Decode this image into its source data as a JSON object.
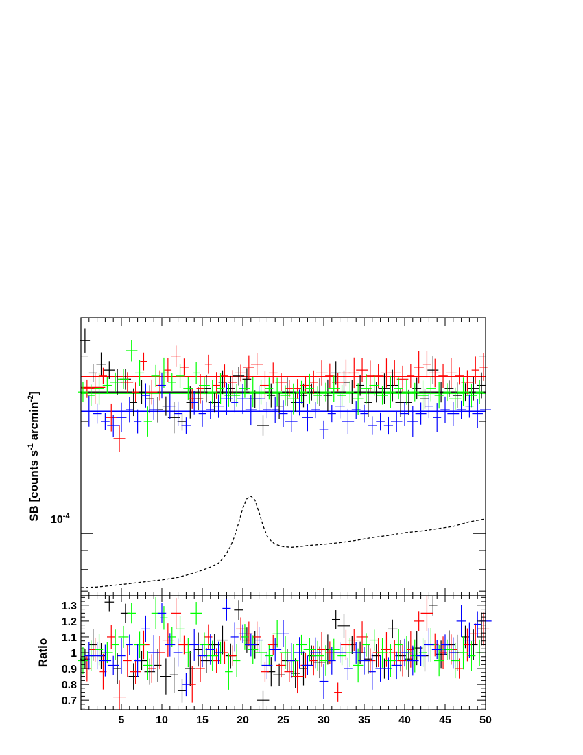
{
  "chart_data": [
    {
      "type": "scatter",
      "panel": "top",
      "ylabel": "SB [counts s",
      "ylabel_sup1": "-1",
      "ylabel_mid": " arcmin",
      "ylabel_sup2": "-2",
      "ylabel_end": "]",
      "yscale": "log",
      "ylim": [
        6.8e-05,
        0.00038
      ],
      "xlim": [
        0,
        50
      ],
      "ytick_labels": [
        {
          "base": "10",
          "exp": "-4",
          "value": 0.0001
        }
      ],
      "grid": false,
      "legend": "none",
      "fit_lines": [
        {
          "color": "#ff0000",
          "value": 0.000264
        },
        {
          "color": "#000000",
          "value": 0.00024
        },
        {
          "color": "#00ff00",
          "value": 0.000238
        },
        {
          "color": "#0000ff",
          "value": 0.000213
        }
      ],
      "red_low_segment": {
        "x": [
          0,
          3
        ],
        "value": 0.000247
      },
      "background_profile": {
        "style": "dashed",
        "x": [
          0,
          2,
          4,
          6,
          8,
          10,
          12,
          13,
          14,
          15,
          16,
          17,
          17.5,
          18,
          18.5,
          19,
          19.5,
          20,
          20.5,
          21,
          21.5,
          22,
          22.5,
          23,
          23.5,
          24,
          25,
          26,
          27,
          28,
          30,
          32,
          34,
          36,
          38,
          40,
          42,
          44,
          46,
          48,
          50
        ],
        "values": [
          7.15e-05,
          7.18e-05,
          7.25e-05,
          7.33e-05,
          7.42e-05,
          7.5e-05,
          7.62e-05,
          7.72e-05,
          7.83e-05,
          7.97e-05,
          8.12e-05,
          8.32e-05,
          8.55e-05,
          8.85e-05,
          9.25e-05,
          9.85e-05,
          0.000107,
          0.000117,
          0.000124,
          0.000126,
          0.000123,
          0.000114,
          0.000105,
          9.85e-05,
          9.55e-05,
          9.35e-05,
          9.22e-05,
          9.18e-05,
          9.22e-05,
          9.28e-05,
          9.35e-05,
          9.45e-05,
          9.58e-05,
          9.75e-05,
          9.88e-05,
          0.0001005,
          0.0001015,
          0.000103,
          0.0001045,
          0.0001075,
          0.0001095
        ]
      },
      "series": [
        {
          "color": "#000000",
          "x": [
            0.5,
            1.5,
            2.5,
            3.5,
            4.5,
            5.5,
            6.5,
            7.5,
            8.5,
            9.5,
            10.5,
            11.5,
            12.5,
            13.5,
            14.5,
            15.5,
            16.5,
            17.5,
            18.5,
            19.5,
            20.5,
            21.5,
            22.5,
            23.5,
            24.5,
            25.5,
            26.5,
            27.5,
            28.5,
            29.5,
            30.5,
            31.5,
            32.5,
            33.5,
            34.5,
            35.5,
            36.5,
            37.5,
            38.5,
            39.5,
            40.5,
            41.5,
            42.5,
            43.5,
            44.5,
            45.5,
            46.5,
            47.5,
            48.5,
            49.5
          ],
          "values": [
            0.00033,
            0.00027,
            0.000285,
            0.000275,
            0.000255,
            0.00026,
            0.000225,
            0.00024,
            0.00023,
            0.000215,
            0.00022,
            0.000205,
            0.0002,
            0.000225,
            0.00023,
            0.000245,
            0.000225,
            0.000255,
            0.000245,
            0.000265,
            0.00026,
            0.00023,
            0.000195,
            0.000235,
            0.00022,
            0.00024,
            0.000225,
            0.000235,
            0.00024,
            0.00024,
            0.000235,
            0.00027,
            0.000255,
            0.00024,
            0.00025,
            0.000225,
            0.00024,
            0.000245,
            0.00025,
            0.000225,
            0.000225,
            0.000245,
            0.00023,
            0.000275,
            0.00024,
            0.000245,
            0.000235,
            0.00024,
            0.000245,
            0.00025
          ]
        },
        {
          "color": "#ff0000",
          "x": [
            0.75,
            1.75,
            2.75,
            3.75,
            4.75,
            5.75,
            6.75,
            7.75,
            8.75,
            9.75,
            10.75,
            11.75,
            12.75,
            13.75,
            14.75,
            15.75,
            16.75,
            17.75,
            18.75,
            19.75,
            20.75,
            21.75,
            22.75,
            23.75,
            24.75,
            25.75,
            26.75,
            27.75,
            28.75,
            29.75,
            30.75,
            31.75,
            32.75,
            33.75,
            34.75,
            35.75,
            36.75,
            37.75,
            38.75,
            39.75,
            40.75,
            41.75,
            42.75,
            43.75,
            44.75,
            45.75,
            46.75,
            47.75,
            48.75,
            49.75
          ],
          "values": [
            0.000245,
            0.000245,
            0.000265,
            0.000205,
            0.00018,
            0.000255,
            0.00024,
            0.00029,
            0.00024,
            0.00025,
            0.000275,
            0.0003,
            0.00028,
            0.00023,
            0.000245,
            0.000285,
            0.00025,
            0.000265,
            0.000255,
            0.00027,
            0.00028,
            0.000285,
            0.00025,
            0.00027,
            0.000255,
            0.000245,
            0.000245,
            0.00025,
            0.000255,
            0.00027,
            0.000265,
            0.000255,
            0.00027,
            0.00027,
            0.000275,
            0.000265,
            0.000265,
            0.00027,
            0.00027,
            0.00026,
            0.000265,
            0.00028,
            0.000285,
            0.00027,
            0.000265,
            0.00027,
            0.000265,
            0.000255,
            0.000275,
            0.00028
          ]
        },
        {
          "color": "#00ff00",
          "x": [
            0.25,
            1.25,
            2.25,
            3.25,
            4.25,
            5.25,
            6.25,
            7.25,
            8.25,
            9.25,
            10.25,
            11.25,
            12.25,
            13.25,
            14.25,
            15.25,
            16.25,
            17.25,
            18.25,
            19.25,
            20.25,
            21.25,
            22.25,
            23.25,
            24.25,
            25.25,
            26.25,
            27.25,
            28.25,
            29.25,
            30.25,
            31.25,
            32.25,
            33.25,
            34.25,
            35.25,
            36.25,
            37.25,
            38.25,
            39.25,
            40.25,
            41.25,
            42.25,
            43.25,
            44.25,
            45.25,
            46.25,
            47.25,
            48.25,
            49.25
          ],
          "values": [
            0.00024,
            0.000235,
            0.000245,
            0.00025,
            0.000255,
            0.00026,
            0.00031,
            0.00027,
            0.0002,
            0.000265,
            0.00027,
            0.000255,
            0.000265,
            0.000245,
            0.00027,
            0.00025,
            0.00024,
            0.000245,
            0.000235,
            0.000235,
            0.000245,
            0.00024,
            0.00024,
            0.000245,
            0.00024,
            0.000235,
            0.00023,
            0.00024,
            0.000245,
            0.000235,
            0.00024,
            0.000245,
            0.000235,
            0.00024,
            0.00023,
            0.000245,
            0.00025,
            0.000235,
            0.00024,
            0.000245,
            0.00024,
            0.00024,
            0.000235,
            0.000245,
            0.000235,
            0.00024,
            0.00023,
            0.00024,
            0.000235,
            0.00024
          ]
        },
        {
          "color": "#0000ff",
          "x": [
            1.0,
            2.0,
            3.0,
            4.0,
            5.0,
            6.0,
            7.0,
            8.0,
            9.0,
            10.0,
            11.0,
            12.0,
            13.0,
            14.0,
            15.0,
            16.0,
            17.0,
            18.0,
            19.0,
            20.0,
            21.0,
            22.0,
            23.0,
            24.0,
            25.0,
            26.0,
            27.0,
            28.0,
            29.0,
            30.0,
            31.0,
            32.0,
            33.0,
            34.0,
            35.0,
            36.0,
            37.0,
            38.0,
            39.0,
            40.0,
            41.0,
            42.0,
            43.0,
            44.0,
            45.0,
            46.0,
            47.0,
            48.0,
            49.0,
            50.0
          ],
          "values": [
            0.000213,
            0.00021,
            0.0002,
            0.000195,
            0.000205,
            0.000215,
            0.0002,
            0.000235,
            0.000215,
            0.00025,
            0.00022,
            0.00021,
            0.000195,
            0.000225,
            0.00021,
            0.000215,
            0.00022,
            0.00023,
            0.000225,
            0.00023,
            0.000215,
            0.00023,
            0.000215,
            0.000215,
            0.00021,
            0.0002,
            0.000225,
            0.000205,
            0.000215,
            0.00019,
            0.00021,
            0.00022,
            0.0002,
            0.000215,
            0.00021,
            0.000195,
            0.0002,
            0.000195,
            0.0002,
            0.00021,
            0.0002,
            0.00021,
            0.00022,
            0.000205,
            0.000215,
            0.00021,
            0.000215,
            0.00022,
            0.00021,
            0.000215
          ]
        }
      ]
    },
    {
      "type": "scatter",
      "panel": "bottom",
      "ylabel": "Ratio",
      "xlim": [
        0,
        50
      ],
      "ylim": [
        0.64,
        1.36
      ],
      "xtick_labels": [
        "5",
        "10",
        "15",
        "20",
        "25",
        "30",
        "35",
        "40",
        "45",
        "50"
      ],
      "xtick_values": [
        5,
        10,
        15,
        20,
        25,
        30,
        35,
        40,
        45,
        50
      ],
      "ytick_labels": [
        "0.7",
        "0.8",
        "0.9",
        "1",
        "1.1",
        "1.2",
        "1.3"
      ],
      "ytick_values": [
        0.7,
        0.8,
        0.9,
        1.0,
        1.1,
        1.2,
        1.3
      ],
      "grid": false,
      "legend": "none",
      "series": [
        {
          "color": "#000000",
          "x": [
            0.5,
            1.5,
            2.5,
            3.5,
            4.5,
            5.5,
            6.5,
            7.5,
            8.5,
            9.5,
            10.5,
            11.5,
            12.5,
            13.5,
            14.5,
            15.5,
            16.5,
            17.5,
            18.5,
            19.5,
            20.5,
            21.5,
            22.5,
            23.5,
            24.5,
            25.5,
            26.5,
            27.5,
            28.5,
            29.5,
            30.5,
            31.5,
            32.5,
            33.5,
            34.5,
            35.5,
            36.5,
            37.5,
            38.5,
            39.5,
            40.5,
            41.5,
            42.5,
            43.5,
            44.5,
            45.5,
            46.5,
            47.5,
            48.5,
            49.5
          ],
          "values": [
            0.96,
            1.05,
            0.98,
            1.32,
            0.9,
            1.25,
            0.85,
            0.95,
            0.88,
            0.92,
            0.85,
            0.86,
            0.76,
            0.9,
            1.02,
            0.95,
            1.05,
            1.08,
            0.98,
            1.27,
            1.08,
            1.05,
            0.7,
            0.88,
            0.86,
            0.95,
            0.87,
            0.9,
            0.98,
            0.94,
            1.02,
            1.21,
            1.17,
            1.05,
            1.0,
            0.96,
            0.98,
            0.9,
            1.15,
            0.98,
            0.96,
            1.03,
            0.98,
            1.3,
            0.99,
            1.05,
            1.0,
            1.1,
            1.05,
            1.15
          ]
        },
        {
          "color": "#ff0000",
          "x": [
            0.75,
            1.75,
            2.75,
            3.75,
            4.75,
            5.75,
            6.75,
            7.75,
            8.75,
            9.75,
            10.75,
            11.75,
            12.75,
            13.75,
            14.75,
            15.75,
            16.75,
            17.75,
            18.75,
            19.75,
            20.75,
            21.75,
            22.75,
            23.75,
            24.75,
            25.75,
            26.75,
            27.75,
            28.75,
            29.75,
            30.75,
            31.75,
            32.75,
            33.75,
            34.75,
            35.75,
            36.75,
            37.75,
            38.75,
            39.75,
            40.75,
            41.75,
            42.75,
            43.75,
            44.75,
            45.75,
            46.75,
            47.75,
            48.75,
            49.75
          ],
          "values": [
            0.9,
            1.02,
            0.88,
            1.1,
            0.72,
            0.95,
            0.88,
            1.05,
            0.9,
            1.0,
            1.08,
            1.25,
            1.05,
            0.8,
            0.9,
            1.1,
            0.95,
            1.0,
            0.98,
            1.15,
            1.12,
            1.1,
            0.88,
            1.05,
            0.92,
            0.88,
            0.85,
            0.92,
            0.95,
            1.02,
            1.0,
            0.75,
            1.05,
            1.08,
            1.1,
            0.95,
            1.0,
            1.02,
            1.0,
            0.95,
            1.02,
            1.2,
            1.25,
            1.05,
            1.0,
            1.02,
            0.9,
            1.05,
            1.12,
            1.15
          ]
        },
        {
          "color": "#00ff00",
          "x": [
            0.25,
            1.25,
            2.25,
            3.25,
            4.25,
            5.25,
            6.25,
            7.25,
            8.25,
            9.25,
            10.25,
            11.25,
            12.25,
            13.25,
            14.25,
            15.25,
            16.25,
            17.25,
            18.25,
            19.25,
            20.25,
            21.25,
            22.25,
            23.25,
            24.25,
            25.25,
            26.25,
            27.25,
            28.25,
            29.25,
            30.25,
            31.25,
            32.25,
            33.25,
            34.25,
            35.25,
            36.25,
            37.25,
            38.25,
            39.25,
            40.25,
            41.25,
            42.25,
            43.25,
            44.25,
            45.25,
            46.25,
            47.25,
            48.25,
            49.25
          ],
          "values": [
            0.95,
            0.98,
            1.02,
            1.0,
            1.05,
            1.1,
            1.25,
            1.05,
            0.92,
            1.25,
            1.22,
            1.1,
            1.15,
            1.0,
            1.25,
            1.05,
            0.98,
            1.0,
            0.88,
            0.95,
            1.1,
            1.02,
            1.0,
            0.98,
            1.12,
            1.0,
            0.95,
            1.05,
            1.02,
            0.98,
            0.95,
            1.02,
            0.98,
            1.0,
            0.92,
            1.05,
            1.08,
            1.0,
            0.95,
            1.05,
            1.0,
            0.98,
            1.0,
            1.05,
            0.95,
            1.02,
            0.95,
            1.0,
            0.98,
            1.0
          ]
        },
        {
          "color": "#0000ff",
          "x": [
            1.0,
            2.0,
            3.0,
            4.0,
            5.0,
            6.0,
            7.0,
            8.0,
            9.0,
            10.0,
            11.0,
            12.0,
            13.0,
            14.0,
            15.0,
            16.0,
            17.0,
            18.0,
            19.0,
            20.0,
            21.0,
            22.0,
            23.0,
            24.0,
            25.0,
            26.0,
            27.0,
            28.0,
            29.0,
            30.0,
            31.0,
            32.0,
            33.0,
            34.0,
            35.0,
            36.0,
            37.0,
            38.0,
            39.0,
            40.0,
            41.0,
            42.0,
            43.0,
            44.0,
            45.0,
            46.0,
            47.0,
            48.0,
            49.0,
            50.0
          ],
          "values": [
            0.98,
            0.98,
            0.95,
            0.92,
            0.98,
            1.05,
            0.95,
            1.15,
            1.0,
            1.25,
            1.05,
            1.0,
            0.8,
            1.05,
            0.98,
            1.02,
            1.0,
            1.28,
            1.1,
            1.12,
            1.05,
            1.08,
            0.92,
            1.02,
            1.12,
            0.95,
            1.0,
            0.92,
            1.0,
            0.82,
            0.95,
            1.0,
            0.9,
            1.0,
            0.95,
            0.88,
            0.9,
            0.9,
            0.92,
            1.0,
            0.95,
            0.98,
            1.05,
            1.02,
            1.05,
            1.0,
            1.2,
            1.08,
            1.18,
            1.2
          ]
        }
      ]
    }
  ]
}
